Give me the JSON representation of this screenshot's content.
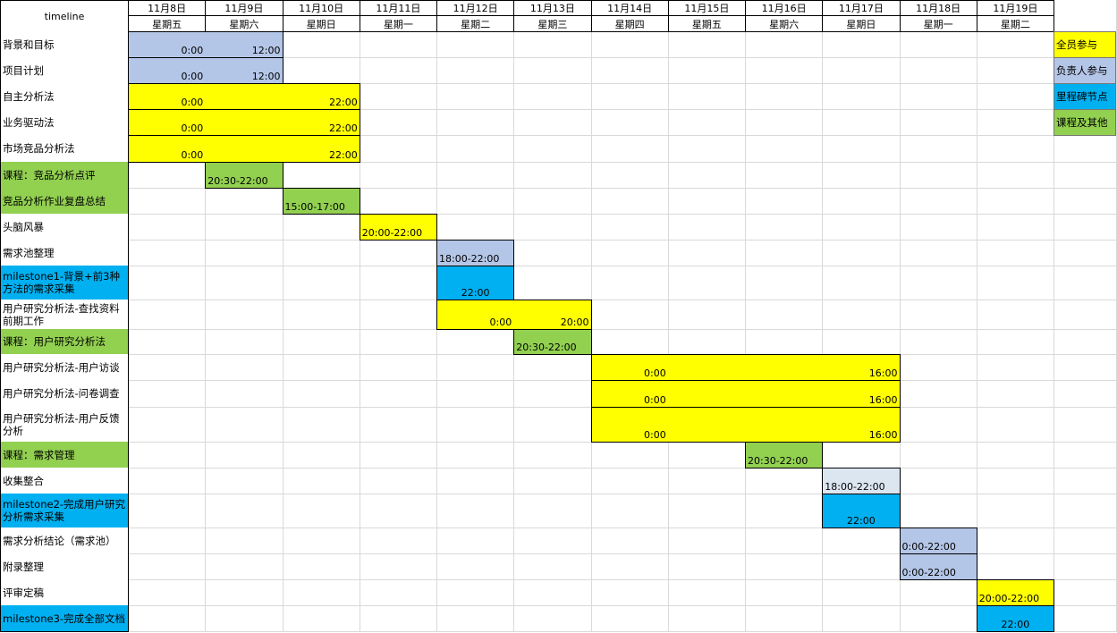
{
  "header": {
    "title": "timeline",
    "dates": [
      "11月8日",
      "11月9日",
      "11月10日",
      "11月11日",
      "11月12日",
      "11月13日",
      "11月14日",
      "11月15日",
      "11月16日",
      "11月17日",
      "11月18日",
      "11月19日"
    ],
    "weekdays": [
      "星期五",
      "星期六",
      "星期日",
      "星期一",
      "星期二",
      "星期三",
      "星期四",
      "星期五",
      "星期六",
      "星期日",
      "星期一",
      "星期二"
    ]
  },
  "legend": [
    {
      "label": "全员参与",
      "color": "#ffff00"
    },
    {
      "label": "负责人参与",
      "color": "#b4c6e7"
    },
    {
      "label": "里程碑节点",
      "color": "#00b0f0"
    },
    {
      "label": "课程及其他",
      "color": "#92d050"
    }
  ],
  "rows": [
    {
      "task": "背景和目标",
      "color": "#ffffff",
      "bar": {
        "start": "11月8日",
        "end": "11月9日",
        "color": "#b4c6e7",
        "align": "right",
        "labels": [
          {
            "date": "11月8日",
            "text": "0:00"
          },
          {
            "date": "11月9日",
            "text": "12:00"
          }
        ]
      }
    },
    {
      "task": "项目计划",
      "color": "#ffffff",
      "bar": {
        "start": "11月8日",
        "end": "11月9日",
        "color": "#b4c6e7",
        "align": "right",
        "labels": [
          {
            "date": "11月8日",
            "text": "0:00"
          },
          {
            "date": "11月9日",
            "text": "12:00"
          }
        ]
      }
    },
    {
      "task": "自主分析法",
      "color": "#ffffff",
      "bar": {
        "start": "11月8日",
        "end": "11月10日",
        "color": "#ffff00",
        "align": "right",
        "labels": [
          {
            "date": "11月8日",
            "text": "0:00"
          },
          {
            "date": "11月10日",
            "text": "22:00"
          }
        ]
      }
    },
    {
      "task": "业务驱动法",
      "color": "#ffffff",
      "bar": {
        "start": "11月8日",
        "end": "11月10日",
        "color": "#ffff00",
        "align": "right",
        "labels": [
          {
            "date": "11月8日",
            "text": "0:00"
          },
          {
            "date": "11月10日",
            "text": "22:00"
          }
        ]
      }
    },
    {
      "task": "市场竞品分析法",
      "color": "#ffffff",
      "bar": {
        "start": "11月8日",
        "end": "11月10日",
        "color": "#ffff00",
        "align": "right",
        "labels": [
          {
            "date": "11月8日",
            "text": "0:00"
          },
          {
            "date": "11月10日",
            "text": "22:00"
          }
        ]
      }
    },
    {
      "task": "课程：竞品分析点评",
      "color": "#92d050",
      "bar": {
        "start": "11月9日",
        "end": "11月9日",
        "color": "#92d050",
        "align": "left",
        "labels": [
          {
            "date": "11月9日",
            "text": "20:30-22:00"
          }
        ]
      }
    },
    {
      "task": "竞品分析作业复盘总结",
      "color": "#92d050",
      "bar": {
        "start": "11月10日",
        "end": "11月10日",
        "color": "#92d050",
        "align": "left",
        "labels": [
          {
            "date": "11月10日",
            "text": "15:00-17:00"
          }
        ]
      }
    },
    {
      "task": "头脑风暴",
      "color": "#ffffff",
      "bar": {
        "start": "11月11日",
        "end": "11月11日",
        "color": "#ffff00",
        "align": "left",
        "labels": [
          {
            "date": "11月11日",
            "text": "20:00-22:00"
          }
        ]
      }
    },
    {
      "task": "需求池整理",
      "color": "#ffffff",
      "bar": {
        "start": "11月12日",
        "end": "11月12日",
        "color": "#b4c6e7",
        "align": "left",
        "labels": [
          {
            "date": "11月12日",
            "text": "18:00-22:00"
          }
        ]
      }
    },
    {
      "task": "milestone1-背景+前3种方法的需求采集",
      "color": "#00b0f0",
      "bar": {
        "start": "11月12日",
        "end": "11月12日",
        "color": "#00b0f0",
        "align": "center",
        "labels": [
          {
            "date": "11月12日",
            "text": "22:00"
          }
        ]
      }
    },
    {
      "task": "用户研究分析法-查找资料前期工作",
      "color": "#ffffff",
      "bar": {
        "start": "11月12日",
        "end": "11月13日",
        "color": "#ffff00",
        "align": "right",
        "labels": [
          {
            "date": "11月12日",
            "text": "0:00"
          },
          {
            "date": "11月13日",
            "text": "20:00"
          }
        ]
      }
    },
    {
      "task": "课程：用户研究分析法",
      "color": "#92d050",
      "bar": {
        "start": "11月13日",
        "end": "11月13日",
        "color": "#92d050",
        "align": "left",
        "labels": [
          {
            "date": "11月13日",
            "text": "20:30-22:00"
          }
        ]
      }
    },
    {
      "task": "用户研究分析法-用户访谈",
      "color": "#ffffff",
      "bar": {
        "start": "11月14日",
        "end": "11月17日",
        "color": "#ffff00",
        "align": "right",
        "labels": [
          {
            "date": "11月14日",
            "text": "0:00"
          },
          {
            "date": "11月17日",
            "text": "16:00"
          }
        ]
      }
    },
    {
      "task": "用户研究分析法-问卷调查",
      "color": "#ffffff",
      "bar": {
        "start": "11月14日",
        "end": "11月17日",
        "color": "#ffff00",
        "align": "right",
        "labels": [
          {
            "date": "11月14日",
            "text": "0:00"
          },
          {
            "date": "11月17日",
            "text": "16:00"
          }
        ]
      }
    },
    {
      "task": "用户研究分析法-用户反馈分析",
      "color": "#ffffff",
      "bar": {
        "start": "11月14日",
        "end": "11月17日",
        "color": "#ffff00",
        "align": "right",
        "labels": [
          {
            "date": "11月14日",
            "text": "0:00"
          },
          {
            "date": "11月17日",
            "text": "16:00"
          }
        ]
      }
    },
    {
      "task": "课程：需求管理",
      "color": "#92d050",
      "bar": {
        "start": "11月16日",
        "end": "11月16日",
        "color": "#92d050",
        "align": "left",
        "labels": [
          {
            "date": "11月16日",
            "text": "20:30-22:00"
          }
        ]
      }
    },
    {
      "task": "收集整合",
      "color": "#ffffff",
      "bar": {
        "start": "11月17日",
        "end": "11月17日",
        "color": "#dce6f1",
        "align": "left",
        "labels": [
          {
            "date": "11月17日",
            "text": "18:00-22:00"
          }
        ]
      }
    },
    {
      "task": "milestone2-完成用户研究分析需求采集",
      "color": "#00b0f0",
      "bar": {
        "start": "11月17日",
        "end": "11月17日",
        "color": "#00b0f0",
        "align": "center",
        "labels": [
          {
            "date": "11月17日",
            "text": "22:00"
          }
        ]
      }
    },
    {
      "task": "需求分析结论（需求池）",
      "color": "#ffffff",
      "bar": {
        "start": "11月18日",
        "end": "11月18日",
        "color": "#b4c6e7",
        "align": "left",
        "labels": [
          {
            "date": "11月18日",
            "text": "0:00-22:00"
          }
        ]
      }
    },
    {
      "task": "附录整理",
      "color": "#ffffff",
      "bar": {
        "start": "11月18日",
        "end": "11月18日",
        "color": "#b4c6e7",
        "align": "left",
        "labels": [
          {
            "date": "11月18日",
            "text": "0:00-22:00"
          }
        ]
      }
    },
    {
      "task": "评审定稿",
      "color": "#ffffff",
      "bar": {
        "start": "11月19日",
        "end": "11月19日",
        "color": "#ffff00",
        "align": "left",
        "labels": [
          {
            "date": "11月19日",
            "text": "20:00-22:00"
          }
        ]
      }
    },
    {
      "task": "milestone3-完成全部文档",
      "color": "#00b0f0",
      "bar": {
        "start": "11月19日",
        "end": "11月19日",
        "color": "#00b0f0",
        "align": "center",
        "labels": [
          {
            "date": "11月19日",
            "text": "22:00"
          }
        ]
      }
    }
  ]
}
